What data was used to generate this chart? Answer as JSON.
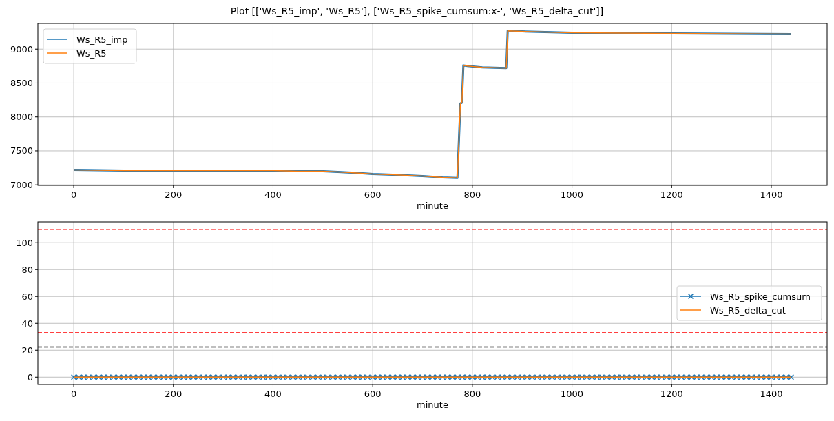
{
  "chart_data": [
    {
      "type": "line",
      "title": "Plot [['Ws_R5_imp', 'Ws_R5'], ['Ws_R5_spike_cumsum:x-', 'Ws_R5_delta_cut']]",
      "xlabel": "minute",
      "xlim": [
        -72,
        1512
      ],
      "xticks": [
        0,
        200,
        400,
        600,
        800,
        1000,
        1200,
        1400
      ],
      "ylim": [
        6992,
        9378
      ],
      "yticks": [
        7000,
        7500,
        8000,
        8500,
        9000
      ],
      "grid": true,
      "legend": "top left",
      "series": [
        {
          "name": "Ws_R5_imp",
          "color": "#1f77b4",
          "x": [
            0,
            100,
            200,
            300,
            400,
            450,
            500,
            530,
            580,
            600,
            640,
            700,
            740,
            770,
            773,
            776,
            779,
            782,
            790,
            820,
            868,
            871,
            900,
            1000,
            1200,
            1440
          ],
          "values": [
            7220,
            7210,
            7210,
            7210,
            7210,
            7200,
            7200,
            7190,
            7170,
            7160,
            7150,
            7130,
            7110,
            7100,
            7650,
            8200,
            8210,
            8760,
            8750,
            8730,
            8720,
            9270,
            9260,
            9240,
            9230,
            9220
          ]
        },
        {
          "name": "Ws_R5",
          "color": "#ff7f0e",
          "x": [
            0,
            100,
            200,
            300,
            400,
            450,
            500,
            530,
            580,
            600,
            640,
            700,
            740,
            770,
            773,
            776,
            779,
            782,
            790,
            820,
            868,
            871,
            900,
            1000,
            1200,
            1440
          ],
          "values": [
            7220,
            7210,
            7210,
            7210,
            7210,
            7200,
            7200,
            7190,
            7170,
            7160,
            7150,
            7130,
            7110,
            7100,
            7650,
            8200,
            8210,
            8760,
            8750,
            8730,
            8720,
            9270,
            9260,
            9240,
            9230,
            9220
          ]
        }
      ]
    },
    {
      "type": "line",
      "xlabel": "minute",
      "xlim": [
        -72,
        1512
      ],
      "xticks": [
        0,
        200,
        400,
        600,
        800,
        1000,
        1200,
        1400
      ],
      "ylim": [
        -5.5,
        115.5
      ],
      "yticks": [
        0,
        20,
        40,
        60,
        80,
        100
      ],
      "grid": true,
      "legend": "right",
      "ref_lines": [
        {
          "axis": "y",
          "value": 110,
          "color": "#ff0000",
          "line_style": "dashed"
        },
        {
          "axis": "y",
          "value": 33,
          "color": "#ff0000",
          "line_style": "dashed"
        },
        {
          "axis": "y",
          "value": 22.5,
          "color": "#000000",
          "line_style": "dashed"
        }
      ],
      "series": [
        {
          "name": "Ws_R5_spike_cumsum",
          "color": "#1f77b4",
          "marker": "cross",
          "x": [
            0,
            10,
            20,
            30,
            40,
            50,
            60,
            70,
            80,
            90,
            100,
            110,
            120,
            130,
            140,
            150,
            160,
            170,
            180,
            190,
            200,
            210,
            220,
            230,
            240,
            250,
            260,
            270,
            280,
            290,
            300,
            310,
            320,
            330,
            340,
            350,
            360,
            370,
            380,
            390,
            400,
            410,
            420,
            430,
            440,
            450,
            460,
            470,
            480,
            490,
            500,
            510,
            520,
            530,
            540,
            550,
            560,
            570,
            580,
            590,
            600,
            610,
            620,
            630,
            640,
            650,
            660,
            670,
            680,
            690,
            700,
            710,
            720,
            730,
            740,
            750,
            760,
            770,
            780,
            790,
            800,
            810,
            820,
            830,
            840,
            850,
            860,
            870,
            880,
            890,
            900,
            910,
            920,
            930,
            940,
            950,
            960,
            970,
            980,
            990,
            1000,
            1010,
            1020,
            1030,
            1040,
            1050,
            1060,
            1070,
            1080,
            1090,
            1100,
            1110,
            1120,
            1130,
            1140,
            1150,
            1160,
            1170,
            1180,
            1190,
            1200,
            1210,
            1220,
            1230,
            1240,
            1250,
            1260,
            1270,
            1280,
            1290,
            1300,
            1310,
            1320,
            1330,
            1340,
            1350,
            1360,
            1370,
            1380,
            1390,
            1400,
            1410,
            1420,
            1430,
            1440
          ],
          "values": [
            0,
            0,
            0,
            0,
            0,
            0,
            0,
            0,
            0,
            0,
            0,
            0,
            0,
            0,
            0,
            0,
            0,
            0,
            0,
            0,
            0,
            0,
            0,
            0,
            0,
            0,
            0,
            0,
            0,
            0,
            0,
            0,
            0,
            0,
            0,
            0,
            0,
            0,
            0,
            0,
            0,
            0,
            0,
            0,
            0,
            0,
            0,
            0,
            0,
            0,
            0,
            0,
            0,
            0,
            0,
            0,
            0,
            0,
            0,
            0,
            0,
            0,
            0,
            0,
            0,
            0,
            0,
            0,
            0,
            0,
            0,
            0,
            0,
            0,
            0,
            0,
            0,
            0,
            0,
            0,
            0,
            0,
            0,
            0,
            0,
            0,
            0,
            0,
            0,
            0,
            0,
            0,
            0,
            0,
            0,
            0,
            0,
            0,
            0,
            0,
            0,
            0,
            0,
            0,
            0,
            0,
            0,
            0,
            0,
            0,
            0,
            0,
            0,
            0,
            0,
            0,
            0,
            0,
            0,
            0,
            0,
            0,
            0,
            0,
            0,
            0,
            0,
            0,
            0,
            0,
            0,
            0,
            0,
            0,
            0,
            0,
            0,
            0,
            0,
            0,
            0,
            0,
            0,
            0,
            0
          ]
        },
        {
          "name": "Ws_R5_delta_cut",
          "color": "#ff7f0e",
          "x": [
            0,
            1440
          ],
          "values": [
            0,
            0
          ]
        }
      ]
    }
  ]
}
